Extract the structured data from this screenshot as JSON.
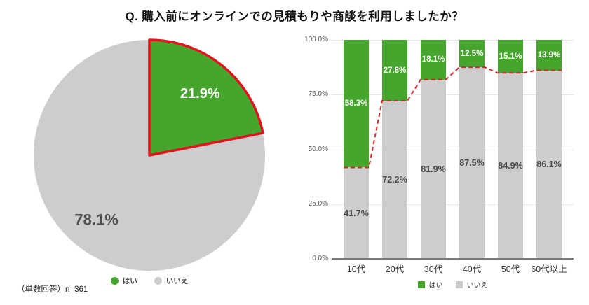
{
  "title": "Q. 購入前にオンラインでの見積もりや商談を利用しましたか？",
  "footnote": "（単数回答）n=361",
  "colors": {
    "yes_green": "#46a52d",
    "no_gray": "#cdcdcd",
    "pie_outline_red": "#e1141e",
    "trend_red": "#cd2a29",
    "grid_gray": "#e6e6e6",
    "axis_gray": "#7a7a7a"
  },
  "pie_legend": {
    "yes_label": "はい",
    "no_label": "いいえ"
  },
  "bar_legend": {
    "yes_label": "はい",
    "no_label": "いいえ"
  },
  "chart_data": [
    {
      "type": "pie",
      "labels": [
        "はい",
        "いいえ"
      ],
      "values": [
        21.9,
        78.1
      ],
      "data_labels": [
        "21.9%",
        "78.1%"
      ],
      "colors": [
        "#46a52d",
        "#cdcdcd"
      ],
      "start_angle_deg": 0,
      "highlight": "yes-slice-outlined-in-red",
      "legend_position": "bottom"
    },
    {
      "type": "bar",
      "subtype": "stacked-100-percent",
      "categories": [
        "10代",
        "20代",
        "30代",
        "40代",
        "50代",
        "60代以上"
      ],
      "series": [
        {
          "name": "はい",
          "values": [
            58.3,
            27.8,
            18.1,
            12.5,
            15.1,
            13.9
          ],
          "color": "#46a52d"
        },
        {
          "name": "いいえ",
          "values": [
            41.7,
            72.2,
            81.9,
            87.5,
            84.9,
            86.1
          ],
          "color": "#cdcdcd"
        }
      ],
      "y_ticks": [
        "100.0%",
        "75.0%",
        "50.0%",
        "25.0%",
        "0.0%"
      ],
      "ylim": [
        0,
        100
      ],
      "grid": true,
      "legend_position": "bottom",
      "overlay_line": {
        "type": "dashed",
        "color": "#cd2a29",
        "follows": "boundary between はい and いいえ segments",
        "values": [
          41.7,
          72.2,
          81.9,
          87.5,
          84.9,
          86.1
        ]
      }
    }
  ]
}
